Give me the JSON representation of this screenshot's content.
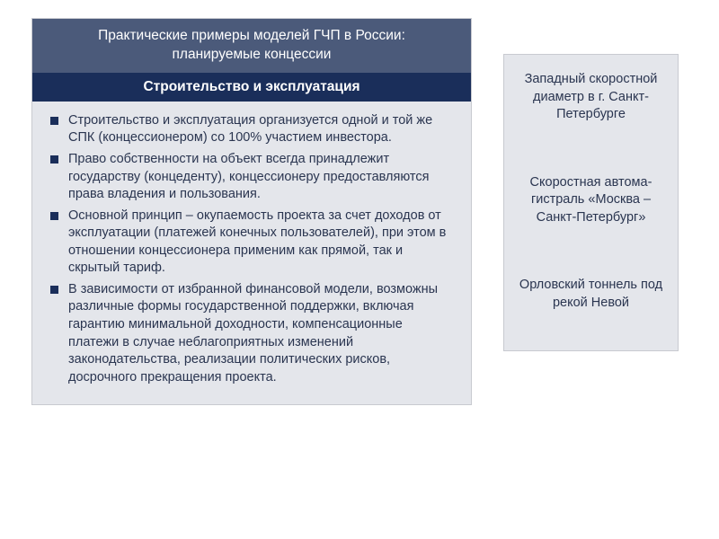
{
  "colors": {
    "panel_bg": "#e4e6eb",
    "panel_border": "#c8cad0",
    "title_bg": "#4b5a7a",
    "subheader_bg": "#1a2e5a",
    "header_text": "#ffffff",
    "body_text": "#2a3550",
    "bullet_color": "#1a2e5a"
  },
  "typography": {
    "title_fontsize": 15.5,
    "subheader_fontsize": 15.5,
    "body_fontsize": 14.5,
    "side_fontsize": 14.5
  },
  "main": {
    "title_line1": "Практические примеры моделей ГЧП в России:",
    "title_line2": "планируемые концессии",
    "subheader": "Строительство и  эксплуатация",
    "bullets": [
      "Строительство и эксплуатация организуется одной и той же СПК (концессионером) со 100% участием инвестора.",
      "Право собственности на объект всегда принадлежит государству (концеденту), концессионеру предостав­ляются права владения и пользования.",
      "Основной принцип – окупаемость проекта за счет доходов от эксплуатации (платежей конечных поль­зователей), при этом в отношении концессионера применим как прямой, так и скрытый тариф.",
      "В зависимости от избранной финансовой модели, возможны различные формы государствен­ной поддержки, включая гарантию минимальной доходности, компенсационные платежи в случае неблагоприятных изменений законодательства, реализации политических рисков, досрочного пре­кращения проекта."
    ]
  },
  "side": {
    "items": [
      "Западный скоростной диаметр в г. Санкт-Петербурге",
      "Скоростная автома­гистраль «Москва – Санкт-Петербург»",
      "Орловский тоннель под рекой Невой"
    ]
  }
}
